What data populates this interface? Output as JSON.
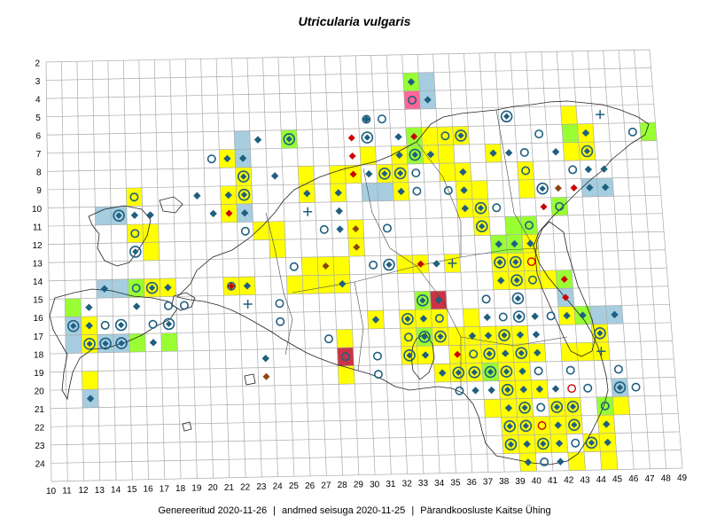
{
  "title": "Utricularia vulgaris",
  "footer": {
    "generated": "Genereeritud 2020-11-26",
    "data_state": "andmed seisuga 2020-11-25",
    "org": "Pärandkoosluste Kaitse Ühing",
    "separator": "|"
  },
  "grid": {
    "x_labels": [
      "10",
      "11",
      "12",
      "13",
      "14",
      "15",
      "16",
      "17",
      "18",
      "19",
      "20",
      "21",
      "22",
      "23",
      "24",
      "25",
      "26",
      "27",
      "28",
      "29",
      "30",
      "31",
      "32",
      "33",
      "34",
      "35",
      "36",
      "37",
      "38",
      "39",
      "40",
      "41",
      "42",
      "43",
      "44",
      "45",
      "46",
      "47",
      "48",
      "49"
    ],
    "y_labels": [
      "2",
      "3",
      "4",
      "5",
      "6",
      "7",
      "8",
      "9",
      "10",
      "11",
      "12",
      "13",
      "14",
      "15",
      "16",
      "17",
      "18",
      "19",
      "20",
      "21",
      "22",
      "23",
      "24"
    ]
  },
  "colors": {
    "yellow": "#ffff00",
    "green": "#99ff33",
    "blue": "#a6cde0",
    "pink": "#ff6699",
    "darkred": "#cc3344",
    "marker": "#1f5f80",
    "red": "#cc0000",
    "brown": "#8b4513",
    "grid": "#aaaaaa",
    "coast": "#222222"
  },
  "cells": [
    [
      33,
      3,
      "green"
    ],
    [
      34,
      3,
      "blue"
    ],
    [
      33,
      4,
      "pink"
    ],
    [
      34,
      4,
      "blue"
    ],
    [
      43,
      5,
      "yellow"
    ],
    [
      35,
      6,
      "yellow"
    ],
    [
      36,
      6,
      "yellow"
    ],
    [
      43,
      6,
      "green"
    ],
    [
      44,
      6,
      "yellow"
    ],
    [
      48,
      6,
      "green"
    ],
    [
      22,
      6,
      "blue"
    ],
    [
      25,
      6,
      "green"
    ],
    [
      33,
      6,
      "green"
    ],
    [
      34,
      6,
      "yellow"
    ],
    [
      21,
      7,
      "yellow"
    ],
    [
      22,
      7,
      "blue"
    ],
    [
      30,
      7,
      "yellow"
    ],
    [
      32,
      7,
      "yellow"
    ],
    [
      33,
      7,
      "green"
    ],
    [
      34,
      7,
      "yellow"
    ],
    [
      35,
      7,
      "yellow"
    ],
    [
      38,
      7,
      "yellow"
    ],
    [
      43,
      7,
      "yellow"
    ],
    [
      44,
      7,
      "yellow"
    ],
    [
      22,
      8,
      "yellow"
    ],
    [
      26,
      8,
      "yellow"
    ],
    [
      28,
      8,
      "yellow"
    ],
    [
      29,
      8,
      "yellow"
    ],
    [
      31,
      8,
      "yellow"
    ],
    [
      32,
      8,
      "yellow"
    ],
    [
      35,
      8,
      "yellow"
    ],
    [
      36,
      8,
      "yellow"
    ],
    [
      40,
      8,
      "yellow"
    ],
    [
      15,
      9,
      "yellow"
    ],
    [
      21,
      9,
      "yellow"
    ],
    [
      22,
      9,
      "yellow"
    ],
    [
      26,
      9,
      "yellow"
    ],
    [
      28,
      9,
      "yellow"
    ],
    [
      30,
      9,
      "blue"
    ],
    [
      31,
      9,
      "blue"
    ],
    [
      32,
      9,
      "yellow"
    ],
    [
      36,
      9,
      "yellow"
    ],
    [
      37,
      9,
      "yellow"
    ],
    [
      40,
      9,
      "yellow"
    ],
    [
      44,
      9,
      "blue"
    ],
    [
      45,
      9,
      "blue"
    ],
    [
      13,
      10,
      "blue"
    ],
    [
      14,
      10,
      "blue"
    ],
    [
      21,
      10,
      "yellow"
    ],
    [
      22,
      10,
      "blue"
    ],
    [
      36,
      10,
      "yellow"
    ],
    [
      37,
      10,
      "yellow"
    ],
    [
      42,
      10,
      "green"
    ],
    [
      15,
      11,
      "yellow"
    ],
    [
      16,
      11,
      "yellow"
    ],
    [
      23,
      11,
      "yellow"
    ],
    [
      24,
      11,
      "yellow"
    ],
    [
      29,
      11,
      "yellow"
    ],
    [
      37,
      11,
      "yellow"
    ],
    [
      39,
      11,
      "green"
    ],
    [
      40,
      11,
      "green"
    ],
    [
      16,
      12,
      "yellow"
    ],
    [
      24,
      12,
      "yellow"
    ],
    [
      29,
      12,
      "yellow"
    ],
    [
      38,
      12,
      "green"
    ],
    [
      39,
      12,
      "green"
    ],
    [
      40,
      12,
      "yellow"
    ],
    [
      26,
      13,
      "yellow"
    ],
    [
      27,
      13,
      "yellow"
    ],
    [
      28,
      13,
      "yellow"
    ],
    [
      32,
      13,
      "yellow"
    ],
    [
      33,
      13,
      "yellow"
    ],
    [
      35,
      13,
      "yellow"
    ],
    [
      38,
      13,
      "yellow"
    ],
    [
      39,
      13,
      "yellow"
    ],
    [
      40,
      13,
      "yellow"
    ],
    [
      13,
      14,
      "blue"
    ],
    [
      14,
      14,
      "blue"
    ],
    [
      15,
      14,
      "green"
    ],
    [
      16,
      14,
      "yellow"
    ],
    [
      17,
      14,
      "yellow"
    ],
    [
      21,
      14,
      "yellow"
    ],
    [
      22,
      14,
      "yellow"
    ],
    [
      25,
      14,
      "yellow"
    ],
    [
      26,
      14,
      "yellow"
    ],
    [
      27,
      14,
      "yellow"
    ],
    [
      28,
      14,
      "yellow"
    ],
    [
      38,
      14,
      "yellow"
    ],
    [
      39,
      14,
      "yellow"
    ],
    [
      40,
      14,
      "yellow"
    ],
    [
      41,
      14,
      "yellow"
    ],
    [
      42,
      14,
      "green"
    ],
    [
      11,
      15,
      "green"
    ],
    [
      33,
      15,
      "green"
    ],
    [
      34,
      15,
      "darkred"
    ],
    [
      42,
      15,
      "blue"
    ],
    [
      11,
      16,
      "blue"
    ],
    [
      12,
      16,
      "yellow"
    ],
    [
      30,
      16,
      "yellow"
    ],
    [
      32,
      16,
      "yellow"
    ],
    [
      33,
      16,
      "yellow"
    ],
    [
      34,
      16,
      "yellow"
    ],
    [
      36,
      16,
      "yellow"
    ],
    [
      42,
      16,
      "yellow"
    ],
    [
      43,
      16,
      "green"
    ],
    [
      44,
      16,
      "blue"
    ],
    [
      45,
      16,
      "blue"
    ],
    [
      11,
      17,
      "blue"
    ],
    [
      12,
      17,
      "yellow"
    ],
    [
      13,
      17,
      "blue"
    ],
    [
      14,
      17,
      "blue"
    ],
    [
      15,
      17,
      "green"
    ],
    [
      17,
      17,
      "green"
    ],
    [
      28,
      17,
      "yellow"
    ],
    [
      32,
      17,
      "yellow"
    ],
    [
      33,
      17,
      "green"
    ],
    [
      34,
      17,
      "yellow"
    ],
    [
      35,
      17,
      "yellow"
    ],
    [
      36,
      17,
      "yellow"
    ],
    [
      37,
      17,
      "yellow"
    ],
    [
      38,
      17,
      "yellow"
    ],
    [
      39,
      17,
      "yellow"
    ],
    [
      44,
      17,
      "yellow"
    ],
    [
      28,
      18,
      "darkred"
    ],
    [
      32,
      18,
      "yellow"
    ],
    [
      33,
      18,
      "yellow"
    ],
    [
      35,
      18,
      "yellow"
    ],
    [
      36,
      18,
      "yellow"
    ],
    [
      37,
      18,
      "yellow"
    ],
    [
      38,
      18,
      "yellow"
    ],
    [
      39,
      18,
      "yellow"
    ],
    [
      40,
      18,
      "yellow"
    ],
    [
      42,
      18,
      "yellow"
    ],
    [
      43,
      18,
      "yellow"
    ],
    [
      44,
      18,
      "yellow"
    ],
    [
      12,
      19,
      "yellow"
    ],
    [
      28,
      19,
      "yellow"
    ],
    [
      34,
      19,
      "yellow"
    ],
    [
      35,
      19,
      "yellow"
    ],
    [
      36,
      19,
      "yellow"
    ],
    [
      37,
      19,
      "green"
    ],
    [
      38,
      19,
      "yellow"
    ],
    [
      39,
      19,
      "yellow"
    ],
    [
      12,
      20,
      "blue"
    ],
    [
      38,
      20,
      "yellow"
    ],
    [
      39,
      20,
      "yellow"
    ],
    [
      40,
      20,
      "yellow"
    ],
    [
      45,
      20,
      "blue"
    ],
    [
      37,
      21,
      "yellow"
    ],
    [
      38,
      21,
      "yellow"
    ],
    [
      39,
      21,
      "yellow"
    ],
    [
      41,
      21,
      "yellow"
    ],
    [
      42,
      21,
      "yellow"
    ],
    [
      44,
      21,
      "green"
    ],
    [
      45,
      21,
      "yellow"
    ],
    [
      38,
      22,
      "yellow"
    ],
    [
      39,
      22,
      "yellow"
    ],
    [
      40,
      22,
      "yellow"
    ],
    [
      41,
      22,
      "yellow"
    ],
    [
      42,
      22,
      "yellow"
    ],
    [
      44,
      22,
      "yellow"
    ],
    [
      38,
      23,
      "yellow"
    ],
    [
      39,
      23,
      "yellow"
    ],
    [
      40,
      23,
      "yellow"
    ],
    [
      41,
      23,
      "yellow"
    ],
    [
      43,
      23,
      "yellow"
    ],
    [
      44,
      23,
      "yellow"
    ],
    [
      39,
      24,
      "yellow"
    ],
    [
      42,
      24,
      "yellow"
    ],
    [
      44,
      24,
      "yellow"
    ]
  ],
  "markers": [
    [
      33,
      3,
      "diamond"
    ],
    [
      34,
      4,
      "diamond"
    ],
    [
      33,
      4,
      "circle"
    ],
    [
      31,
      5,
      "circle"
    ],
    [
      39,
      5,
      "diamond-circle"
    ],
    [
      45,
      5,
      "plus"
    ],
    [
      30,
      5,
      "diamond"
    ],
    [
      23,
      6,
      "diamond"
    ],
    [
      25,
      6,
      "diamond-circle"
    ],
    [
      29,
      6,
      "red-diamond"
    ],
    [
      32,
      6,
      "diamond"
    ],
    [
      33,
      6,
      "red-diamond"
    ],
    [
      35,
      6,
      "circle"
    ],
    [
      36,
      6,
      "diamond-circle"
    ],
    [
      41,
      6,
      "circle"
    ],
    [
      44,
      6,
      "diamond"
    ],
    [
      47,
      6,
      "circle"
    ],
    [
      30,
      6,
      "diamond-circle"
    ],
    [
      30,
      5,
      "circle"
    ],
    [
      21,
      7,
      "diamond"
    ],
    [
      22,
      7,
      "diamond"
    ],
    [
      20,
      7,
      "circle"
    ],
    [
      29,
      7,
      "red-diamond"
    ],
    [
      32,
      7,
      "diamond"
    ],
    [
      33,
      7,
      "diamond-circle"
    ],
    [
      34,
      7,
      "diamond"
    ],
    [
      38,
      7,
      "diamond"
    ],
    [
      39,
      7,
      "diamond"
    ],
    [
      40,
      7,
      "circle"
    ],
    [
      42,
      7,
      "diamond"
    ],
    [
      44,
      7,
      "diamond-circle"
    ],
    [
      22,
      8,
      "diamond-circle"
    ],
    [
      24,
      8,
      "diamond"
    ],
    [
      29,
      8,
      "red-diamond"
    ],
    [
      30,
      8,
      "diamond"
    ],
    [
      31,
      8,
      "diamond-circle"
    ],
    [
      32,
      8,
      "diamond-circle"
    ],
    [
      33,
      8,
      "circle"
    ],
    [
      36,
      8,
      "diamond"
    ],
    [
      40,
      8,
      "circle"
    ],
    [
      43,
      8,
      "circle"
    ],
    [
      45,
      8,
      "diamond"
    ],
    [
      44,
      8,
      "diamond"
    ],
    [
      15,
      9,
      "circle"
    ],
    [
      19,
      9,
      "diamond"
    ],
    [
      21,
      9,
      "diamond"
    ],
    [
      22,
      9,
      "diamond-circle"
    ],
    [
      26,
      9,
      "diamond"
    ],
    [
      28,
      9,
      "diamond"
    ],
    [
      32,
      9,
      "diamond"
    ],
    [
      33,
      9,
      "circle"
    ],
    [
      35,
      9,
      "circle"
    ],
    [
      36,
      9,
      "diamond"
    ],
    [
      41,
      9,
      "diamond-circle"
    ],
    [
      42,
      9,
      "brown-diamond"
    ],
    [
      43,
      9,
      "red-diamond"
    ],
    [
      44,
      9,
      "diamond"
    ],
    [
      45,
      9,
      "diamond"
    ],
    [
      14,
      10,
      "diamond-circle"
    ],
    [
      15,
      10,
      "diamond"
    ],
    [
      16,
      10,
      "diamond"
    ],
    [
      20,
      10,
      "diamond"
    ],
    [
      21,
      10,
      "red-diamond"
    ],
    [
      22,
      10,
      "diamond"
    ],
    [
      26,
      10,
      "plus"
    ],
    [
      28,
      10,
      "diamond"
    ],
    [
      36,
      10,
      "diamond"
    ],
    [
      37,
      10,
      "diamond-circle"
    ],
    [
      38,
      10,
      "circle"
    ],
    [
      41,
      10,
      "red-diamond"
    ],
    [
      42,
      10,
      "circle"
    ],
    [
      15,
      11,
      "circle"
    ],
    [
      22,
      11,
      "circle"
    ],
    [
      27,
      11,
      "circle"
    ],
    [
      28,
      11,
      "diamond"
    ],
    [
      29,
      11,
      "brown-diamond"
    ],
    [
      31,
      11,
      "circle"
    ],
    [
      37,
      11,
      "diamond-circle"
    ],
    [
      40,
      11,
      "circle"
    ],
    [
      15,
      12,
      "diamond-circle"
    ],
    [
      29,
      12,
      "brown-diamond"
    ],
    [
      38,
      12,
      "diamond"
    ],
    [
      39,
      12,
      "diamond"
    ],
    [
      40,
      12,
      "diamond"
    ],
    [
      25,
      13,
      "circle"
    ],
    [
      27,
      13,
      "brown-diamond"
    ],
    [
      30,
      13,
      "circle"
    ],
    [
      31,
      13,
      "diamond-circle"
    ],
    [
      33,
      13,
      "red-diamond"
    ],
    [
      34,
      13,
      "diamond"
    ],
    [
      35,
      13,
      "plus"
    ],
    [
      38,
      13,
      "diamond-circle"
    ],
    [
      39,
      13,
      "diamond-circle"
    ],
    [
      40,
      13,
      "red-circle"
    ],
    [
      13,
      14,
      "diamond"
    ],
    [
      15,
      14,
      "circle"
    ],
    [
      16,
      14,
      "diamond-circle"
    ],
    [
      17,
      14,
      "diamond"
    ],
    [
      21,
      14,
      "circle"
    ],
    [
      21,
      14,
      "red-diamond"
    ],
    [
      22,
      14,
      "diamond"
    ],
    [
      28,
      14,
      "diamond"
    ],
    [
      38,
      14,
      "diamond"
    ],
    [
      39,
      14,
      "diamond-circle"
    ],
    [
      40,
      14,
      "circle"
    ],
    [
      42,
      14,
      "red-diamond"
    ],
    [
      12,
      15,
      "diamond"
    ],
    [
      15,
      15,
      "diamond"
    ],
    [
      17,
      15,
      "circle"
    ],
    [
      18,
      15,
      "circle"
    ],
    [
      22,
      15,
      "plus"
    ],
    [
      24,
      15,
      "circle"
    ],
    [
      33,
      15,
      "diamond-circle"
    ],
    [
      34,
      15,
      "diamond"
    ],
    [
      37,
      15,
      "circle"
    ],
    [
      39,
      15,
      "diamond-circle"
    ],
    [
      42,
      15,
      "red-diamond"
    ],
    [
      11,
      16,
      "diamond-circle"
    ],
    [
      12,
      16,
      "diamond"
    ],
    [
      13,
      16,
      "circle"
    ],
    [
      14,
      16,
      "diamond-circle"
    ],
    [
      16,
      16,
      "circle"
    ],
    [
      17,
      16,
      "diamond-circle"
    ],
    [
      24,
      16,
      "circle"
    ],
    [
      30,
      16,
      "diamond"
    ],
    [
      32,
      16,
      "diamond-circle"
    ],
    [
      33,
      16,
      "diamond"
    ],
    [
      34,
      16,
      "circle"
    ],
    [
      37,
      16,
      "diamond"
    ],
    [
      38,
      16,
      "circle"
    ],
    [
      39,
      16,
      "diamond-circle"
    ],
    [
      40,
      16,
      "diamond"
    ],
    [
      41,
      16,
      "circle"
    ],
    [
      42,
      16,
      "diamond"
    ],
    [
      43,
      16,
      "diamond"
    ],
    [
      45,
      16,
      "diamond"
    ],
    [
      12,
      17,
      "diamond-circle"
    ],
    [
      13,
      17,
      "diamond-circle"
    ],
    [
      14,
      17,
      "diamond-circle"
    ],
    [
      16,
      17,
      "diamond"
    ],
    [
      27,
      17,
      "circle"
    ],
    [
      32,
      17,
      "circle"
    ],
    [
      33,
      17,
      "diamond-circle"
    ],
    [
      34,
      17,
      "diamond-circle"
    ],
    [
      36,
      17,
      "diamond"
    ],
    [
      37,
      17,
      "diamond"
    ],
    [
      38,
      17,
      "diamond-circle"
    ],
    [
      39,
      17,
      "diamond"
    ],
    [
      40,
      17,
      "diamond"
    ],
    [
      44,
      17,
      "diamond-circle"
    ],
    [
      23,
      18,
      "diamond"
    ],
    [
      28,
      18,
      "circle"
    ],
    [
      30,
      18,
      "circle"
    ],
    [
      32,
      18,
      "diamond-circle"
    ],
    [
      33,
      18,
      "diamond"
    ],
    [
      35,
      18,
      "red-diamond"
    ],
    [
      36,
      18,
      "circle"
    ],
    [
      37,
      18,
      "diamond-circle"
    ],
    [
      38,
      18,
      "diamond"
    ],
    [
      39,
      18,
      "diamond-circle"
    ],
    [
      40,
      18,
      "diamond"
    ],
    [
      44,
      18,
      "plus"
    ],
    [
      23,
      19,
      "brown-diamond"
    ],
    [
      30,
      19,
      "circle"
    ],
    [
      34,
      19,
      "diamond"
    ],
    [
      35,
      19,
      "diamond-circle"
    ],
    [
      36,
      19,
      "diamond-circle"
    ],
    [
      37,
      19,
      "diamond-circle"
    ],
    [
      38,
      19,
      "diamond-circle"
    ],
    [
      39,
      19,
      "diamond"
    ],
    [
      40,
      19,
      "circle"
    ],
    [
      42,
      19,
      "circle"
    ],
    [
      45,
      19,
      "circle"
    ],
    [
      12,
      20,
      "diamond"
    ],
    [
      35,
      20,
      "circle"
    ],
    [
      36,
      20,
      "diamond"
    ],
    [
      37,
      20,
      "diamond"
    ],
    [
      38,
      20,
      "diamond-circle"
    ],
    [
      39,
      20,
      "diamond"
    ],
    [
      40,
      20,
      "diamond"
    ],
    [
      41,
      20,
      "diamond"
    ],
    [
      42,
      20,
      "red-circle"
    ],
    [
      43,
      20,
      "circle"
    ],
    [
      45,
      20,
      "diamond-circle"
    ],
    [
      46,
      20,
      "circle"
    ],
    [
      38,
      21,
      "diamond"
    ],
    [
      39,
      21,
      "diamond-circle"
    ],
    [
      40,
      21,
      "circle"
    ],
    [
      41,
      21,
      "diamond-circle"
    ],
    [
      42,
      21,
      "diamond-circle"
    ],
    [
      44,
      21,
      "circle"
    ],
    [
      38,
      22,
      "diamond-circle"
    ],
    [
      39,
      22,
      "diamond-circle"
    ],
    [
      40,
      22,
      "red-circle"
    ],
    [
      41,
      22,
      "diamond"
    ],
    [
      42,
      22,
      "diamond-circle"
    ],
    [
      44,
      22,
      "diamond"
    ],
    [
      38,
      23,
      "diamond-circle"
    ],
    [
      39,
      23,
      "diamond"
    ],
    [
      40,
      23,
      "diamond-circle"
    ],
    [
      41,
      23,
      "diamond"
    ],
    [
      42,
      23,
      "circle"
    ],
    [
      43,
      23,
      "diamond-circle"
    ],
    [
      44,
      23,
      "diamond"
    ],
    [
      39,
      24,
      "diamond"
    ],
    [
      40,
      24,
      "circle"
    ],
    [
      41,
      24,
      "diamond"
    ]
  ]
}
